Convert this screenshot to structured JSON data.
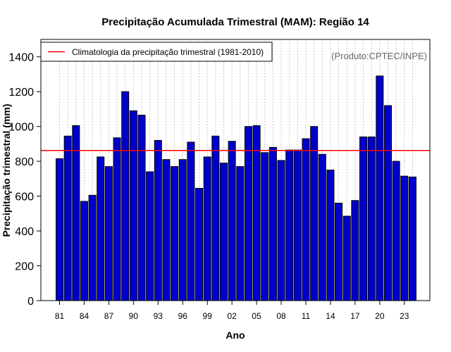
{
  "chart_data": {
    "type": "bar",
    "title": "Precipitação Acumulada Trimestral (MAM): Região 14",
    "xlabel": "Ano",
    "ylabel": "Precipitação trimestral (mm)",
    "ylim": [
      0,
      1500
    ],
    "yticks": [
      0,
      200,
      400,
      600,
      800,
      1000,
      1200,
      1400
    ],
    "grid": "vertical dotted",
    "x_tick_labels": [
      "81",
      "84",
      "87",
      "90",
      "93",
      "96",
      "99",
      "02",
      "05",
      "08",
      "11",
      "14",
      "17",
      "20",
      "23"
    ],
    "categories": [
      "1981",
      "1982",
      "1983",
      "1984",
      "1985",
      "1986",
      "1987",
      "1988",
      "1989",
      "1990",
      "1991",
      "1992",
      "1993",
      "1994",
      "1995",
      "1996",
      "1997",
      "1998",
      "1999",
      "2000",
      "2001",
      "2002",
      "2003",
      "2004",
      "2005",
      "2006",
      "2007",
      "2008",
      "2009",
      "2010",
      "2011",
      "2012",
      "2013",
      "2014",
      "2015",
      "2016",
      "2017",
      "2018",
      "2019",
      "2020",
      "2021",
      "2022",
      "2023",
      "2024"
    ],
    "values": [
      815,
      945,
      1005,
      570,
      605,
      825,
      770,
      935,
      1200,
      1090,
      1065,
      740,
      920,
      810,
      770,
      810,
      910,
      645,
      825,
      945,
      790,
      915,
      770,
      1000,
      1005,
      850,
      880,
      805,
      865,
      865,
      930,
      1000,
      840,
      750,
      560,
      485,
      575,
      940,
      940,
      1290,
      1120,
      800,
      715,
      710
    ],
    "bar_color": "#0000cc",
    "reference_line": {
      "value": 862,
      "color": "#ff0000",
      "label": "Climatologia da precipitação trimestral (1981-2010)"
    },
    "legend_position": "top-left",
    "annotation": "(Produto:CPTEC/INPE)"
  }
}
